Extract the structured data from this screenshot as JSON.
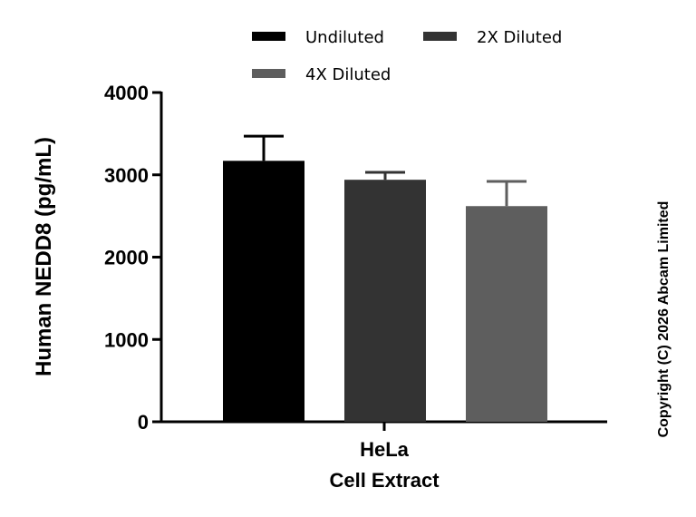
{
  "chart_data": {
    "type": "bar",
    "ylabel": "Human NEDD8 (pg/mL)",
    "x_category_lines": [
      "HeLa",
      "Cell Extract"
    ],
    "ylim": [
      0,
      4000
    ],
    "yticks": [
      "0",
      "1000",
      "2000",
      "3000",
      "4000"
    ],
    "legend_position": "top",
    "series": [
      {
        "name": "Undiluted",
        "value": 3170,
        "error": 300,
        "color": "#000000"
      },
      {
        "name": "2X Diluted",
        "value": 2940,
        "error": 90,
        "color": "#333333"
      },
      {
        "name": "4X Diluted",
        "value": 2620,
        "error": 300,
        "color": "#5e5e5e"
      }
    ]
  },
  "copyright": "Copyright (C) 2026 Abcam Limited"
}
